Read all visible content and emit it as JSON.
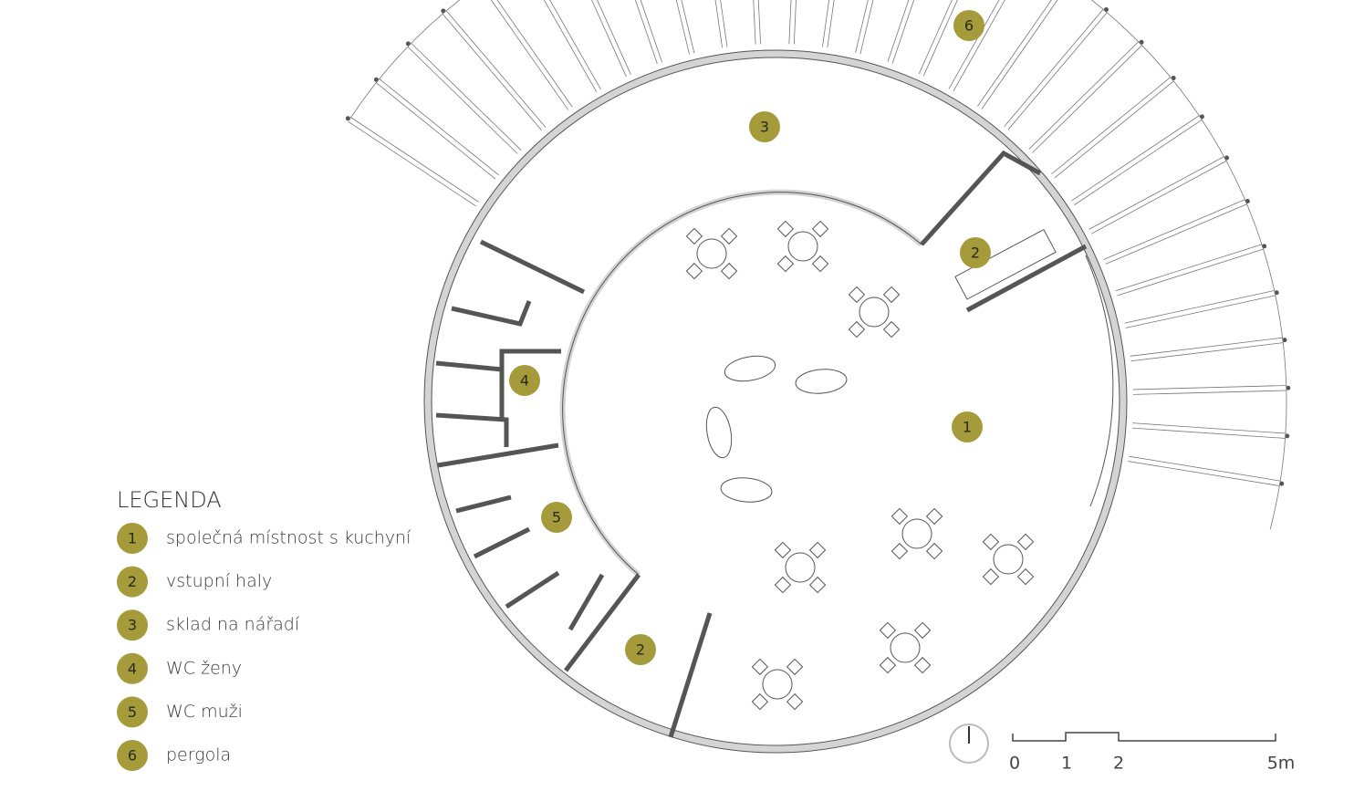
{
  "legend": {
    "title": "LEGENDA",
    "items": [
      {
        "number": "1",
        "label": "společná místnost s kuchyní"
      },
      {
        "number": "2",
        "label": "vstupní haly"
      },
      {
        "number": "3",
        "label": "sklad na nářadí"
      },
      {
        "number": "4",
        "label": "WC ženy"
      },
      {
        "number": "5",
        "label": "WC muži"
      },
      {
        "number": "6",
        "label": "pergola"
      }
    ]
  },
  "plan_markers": [
    "6",
    "3",
    "2",
    "4",
    "1",
    "5",
    "2"
  ],
  "scale": {
    "labels": [
      "0",
      "1",
      "2",
      "5m"
    ]
  }
}
